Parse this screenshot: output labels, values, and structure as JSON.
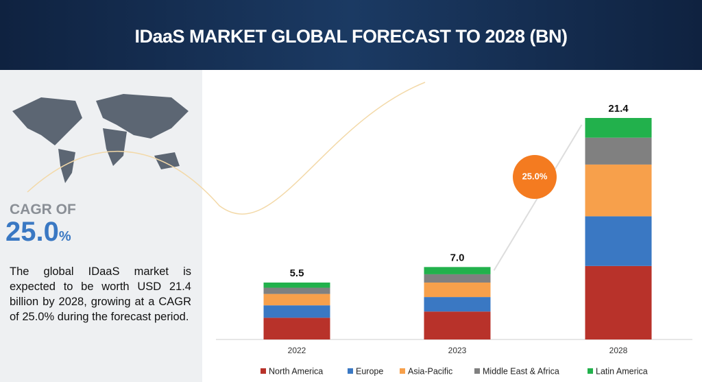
{
  "sidebar": {
    "cagr_label": "CAGR OF",
    "cagr_value": "25.0",
    "cagr_unit": "%",
    "description": "The global IDaaS market is expected to be worth USD 21.4 billion by 2028, growing at a CAGR of 25.0% during the forecast period."
  },
  "chart_data": {
    "type": "stacked_bar",
    "title": "IDaaS MARKET GLOBAL FORECAST TO 2028 (BN)",
    "categories": [
      "2022",
      "2023",
      "2028"
    ],
    "series": [
      {
        "name": "North America",
        "color": "#b8322a",
        "values": [
          2.1,
          2.7,
          7.1
        ]
      },
      {
        "name": "Europe",
        "color": "#3a78c3",
        "values": [
          1.2,
          1.4,
          4.8
        ]
      },
      {
        "name": "Asia-Pacific",
        "color": "#f7a04b",
        "values": [
          1.1,
          1.4,
          5.0
        ]
      },
      {
        "name": "Middle East & Africa",
        "color": "#808080",
        "values": [
          0.6,
          0.8,
          2.6
        ]
      },
      {
        "name": "Latin America",
        "color": "#22b14c",
        "values": [
          0.5,
          0.7,
          1.9
        ]
      }
    ],
    "totals": [
      5.5,
      7.0,
      21.4
    ],
    "value_labels": [
      "5.5",
      "7.0",
      "21.4"
    ],
    "annotation": "25.0%"
  }
}
